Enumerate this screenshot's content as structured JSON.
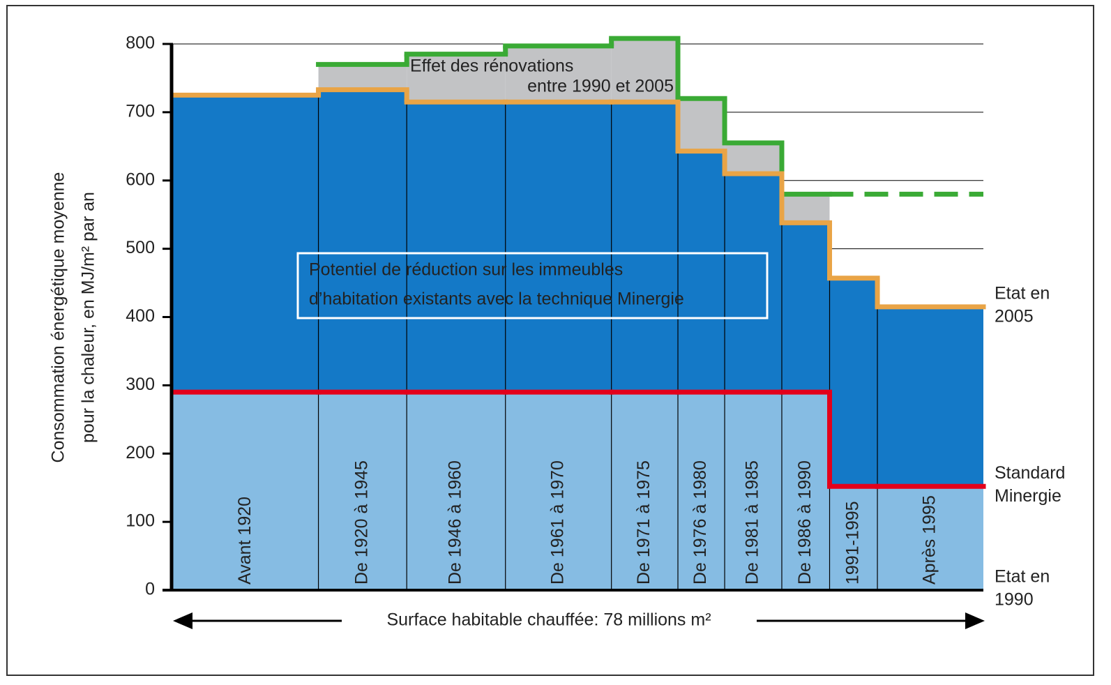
{
  "chart_data": {
    "type": "step-bar",
    "y_label": [
      "Consommation énergétique moyenne",
      "pour la chaleur, en MJ/m² par an"
    ],
    "x_label": "Surface habitable chauffée: 78 millions m²",
    "categories": [
      "Avant 1920",
      "De 1920 à 1945",
      "De 1946 à 1960",
      "De 1961 à 1970",
      "De 1971 à 1975",
      "De 1976 à 1980",
      "De 1981 à 1985",
      "De 1986 à 1990",
      "1991-1995",
      "Après 1995"
    ],
    "surface": [
      14.0,
      8.5,
      9.5,
      10.2,
      6.4,
      4.5,
      5.5,
      4.6,
      4.6,
      10.2
    ],
    "series": [
      {
        "name": [
          "Etat en",
          "1990"
        ],
        "color": "#3aaa35",
        "values": [
          null,
          770,
          785,
          797,
          808,
          720,
          655,
          580,
          null,
          null
        ]
      },
      {
        "name": [
          "Etat en",
          "2005"
        ],
        "color": "#e9a446",
        "values": [
          725,
          733,
          715,
          715,
          715,
          643,
          610,
          538,
          457,
          415
        ]
      },
      {
        "name": [
          "Standard",
          "Minergie"
        ],
        "color": "#e3001b",
        "values": [
          290,
          290,
          290,
          290,
          290,
          290,
          290,
          290,
          152,
          152
        ]
      }
    ],
    "annotations": {
      "renovation": [
        "Effet des rénovations",
        "entre 1990 et 2005"
      ],
      "potential": [
        "Potentiel de réduction sur les immeubles",
        "d’habitation existants avec la technique Minergie"
      ]
    },
    "fill_colors": {
      "renovation": "#c2c3c5",
      "potential": "#1479c7",
      "base": "#86bce3"
    },
    "ylim": [
      0,
      800
    ],
    "yticks": [
      0,
      100,
      200,
      300,
      400,
      500,
      600,
      700,
      800
    ],
    "grid": true
  }
}
